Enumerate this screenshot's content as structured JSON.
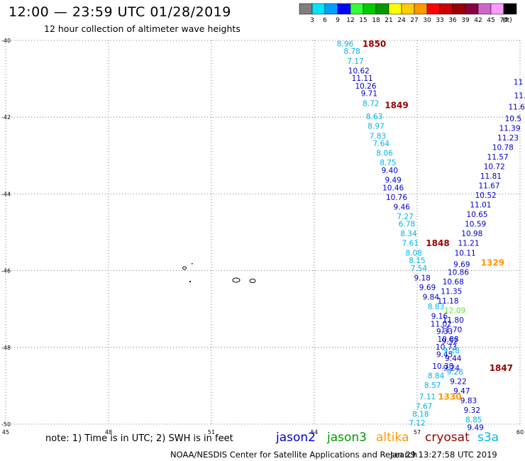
{
  "header": {
    "title": "12:00 — 23:59 UTC 01/28/2019",
    "subtitle": "12 hour collection of altimeter wave heights"
  },
  "colorbar": {
    "unit_label": "(ft)",
    "levels": [
      {
        "label": "3",
        "color": "#7f7f7f"
      },
      {
        "label": "6",
        "color": "#00e5ff"
      },
      {
        "label": "9",
        "color": "#00a0ff"
      },
      {
        "label": "12",
        "color": "#0000ff"
      },
      {
        "label": "15",
        "color": "#33ff33"
      },
      {
        "label": "18",
        "color": "#00cc00"
      },
      {
        "label": "21",
        "color": "#009900"
      },
      {
        "label": "24",
        "color": "#ffff00"
      },
      {
        "label": "27",
        "color": "#ffcc00"
      },
      {
        "label": "30",
        "color": "#ff9900"
      },
      {
        "label": "33",
        "color": "#ff0000"
      },
      {
        "label": "36",
        "color": "#cc0000"
      },
      {
        "label": "39",
        "color": "#990000"
      },
      {
        "label": "42",
        "color": "#880044"
      },
      {
        "label": "45",
        "color": "#cc66cc"
      },
      {
        "label": "70",
        "color": "#ff99ff"
      },
      {
        "label": "",
        "color": "#000000"
      }
    ]
  },
  "colors": {
    "jason2": "#0000c8",
    "jason3": "#009900",
    "altika": "#ff9900",
    "cryosat": "#990000",
    "s3a": "#00b4e6",
    "light_green": "#66dd33"
  },
  "legend": {
    "note": "note: 1) Time is in UTC; 2) SWH is in feet",
    "items": [
      {
        "label": "jason2",
        "color_key": "jason2"
      },
      {
        "label": "jason3",
        "color_key": "jason3"
      },
      {
        "label": "altika",
        "color_key": "altika"
      },
      {
        "label": "cryosat",
        "color_key": "cryosat"
      },
      {
        "label": "s3a",
        "color_key": "s3a"
      }
    ]
  },
  "footer": {
    "credit": "NOAA/NESDIS Center for Satellite Applications and Research",
    "timestamp": "Jan 29 13:27:58 UTC 2019"
  },
  "chart_data": {
    "type": "scatter",
    "x_unit": "degrees longitude",
    "y_unit": "degrees latitude",
    "xlim": [
      45,
      60
    ],
    "ylim": [
      -50,
      -40
    ],
    "x_ticks": [
      "45",
      "48",
      "51",
      "54",
      "57",
      "60"
    ],
    "y_ticks": [
      "-40",
      "-42",
      "-44",
      "-46",
      "-48",
      "-50"
    ],
    "grid": true,
    "tracks": [
      {
        "satellite": "s3a_jason2_track_1",
        "points": [
          {
            "lon": 54.9,
            "lat": -40.1,
            "v": "8.96",
            "c": "s3a"
          },
          {
            "lon": 55.1,
            "lat": -40.3,
            "v": "8.78",
            "c": "s3a"
          },
          {
            "lon": 55.2,
            "lat": -40.55,
            "v": "7.17",
            "c": "s3a"
          },
          {
            "lon": 55.3,
            "lat": -40.8,
            "v": "10.62",
            "c": "jason2"
          },
          {
            "lon": 55.4,
            "lat": -41.0,
            "v": "11.11",
            "c": "jason2"
          },
          {
            "lon": 55.5,
            "lat": -41.2,
            "v": "10.26",
            "c": "jason2"
          },
          {
            "lon": 55.6,
            "lat": -41.4,
            "v": "9.71",
            "c": "jason2"
          },
          {
            "lon": 55.65,
            "lat": -41.65,
            "v": "8.72",
            "c": "s3a"
          },
          {
            "lon": 55.75,
            "lat": -42.0,
            "v": "8.63",
            "c": "s3a"
          },
          {
            "lon": 55.8,
            "lat": -42.25,
            "v": "8.97",
            "c": "s3a"
          },
          {
            "lon": 55.85,
            "lat": -42.5,
            "v": "7.83",
            "c": "s3a"
          },
          {
            "lon": 55.95,
            "lat": -42.7,
            "v": "7.64",
            "c": "s3a"
          },
          {
            "lon": 56.05,
            "lat": -42.95,
            "v": "8.06",
            "c": "s3a"
          },
          {
            "lon": 56.15,
            "lat": -43.2,
            "v": "8.75",
            "c": "s3a"
          },
          {
            "lon": 56.2,
            "lat": -43.4,
            "v": "9.40",
            "c": "jason2"
          },
          {
            "lon": 56.3,
            "lat": -43.65,
            "v": "9.49",
            "c": "jason2"
          },
          {
            "lon": 56.3,
            "lat": -43.85,
            "v": "10.46",
            "c": "jason2"
          },
          {
            "lon": 56.4,
            "lat": -44.1,
            "v": "10.76",
            "c": "jason2"
          },
          {
            "lon": 56.55,
            "lat": -44.35,
            "v": "9.46",
            "c": "jason2"
          },
          {
            "lon": 56.65,
            "lat": -44.6,
            "v": "7.27",
            "c": "s3a"
          },
          {
            "lon": 56.7,
            "lat": -44.8,
            "v": "6.78",
            "c": "s3a"
          },
          {
            "lon": 56.75,
            "lat": -45.05,
            "v": "8.34",
            "c": "s3a"
          },
          {
            "lon": 56.8,
            "lat": -45.3,
            "v": "7.61",
            "c": "s3a"
          },
          {
            "lon": 56.9,
            "lat": -45.55,
            "v": "8.08",
            "c": "s3a"
          },
          {
            "lon": 57.0,
            "lat": -45.75,
            "v": "8.15",
            "c": "s3a"
          },
          {
            "lon": 57.05,
            "lat": -45.95,
            "v": "7.54",
            "c": "s3a"
          },
          {
            "lon": 57.15,
            "lat": -46.2,
            "v": "9.18",
            "c": "jason2"
          },
          {
            "lon": 57.3,
            "lat": -46.45,
            "v": "9.69",
            "c": "jason2"
          },
          {
            "lon": 57.4,
            "lat": -46.7,
            "v": "9.84",
            "c": "jason2"
          },
          {
            "lon": 57.55,
            "lat": -46.95,
            "v": "8.83",
            "c": "s3a"
          },
          {
            "lon": 57.65,
            "lat": -47.2,
            "v": "9.16",
            "c": "jason2"
          },
          {
            "lon": 57.7,
            "lat": -47.4,
            "v": "11.02",
            "c": "jason2"
          },
          {
            "lon": 57.8,
            "lat": -47.6,
            "v": "9.33",
            "c": "jason2"
          },
          {
            "lon": 57.9,
            "lat": -47.8,
            "v": "10.88",
            "c": "jason2"
          },
          {
            "lon": 57.85,
            "lat": -48.0,
            "v": "10.73",
            "c": "jason2"
          },
          {
            "lon": 57.8,
            "lat": -48.2,
            "v": "9.45",
            "c": "jason2"
          },
          {
            "lon": 57.75,
            "lat": -48.5,
            "v": "10.38",
            "c": "jason2"
          },
          {
            "lon": 57.55,
            "lat": -48.75,
            "v": "8.84",
            "c": "s3a"
          },
          {
            "lon": 57.45,
            "lat": -49.0,
            "v": "8.57",
            "c": "s3a"
          },
          {
            "lon": 57.3,
            "lat": -49.3,
            "v": "7.11",
            "c": "s3a"
          },
          {
            "lon": 57.2,
            "lat": -49.55,
            "v": "7.67",
            "c": "s3a"
          },
          {
            "lon": 57.1,
            "lat": -49.75,
            "v": "8.18",
            "c": "s3a"
          },
          {
            "lon": 57.0,
            "lat": -49.98,
            "v": "7.12",
            "c": "s3a"
          }
        ]
      },
      {
        "satellite": "jason2_track_2",
        "points": [
          {
            "lon": 59.95,
            "lat": -41.1,
            "v": "11",
            "c": "jason2"
          },
          {
            "lon": 60.0,
            "lat": -41.45,
            "v": "11.",
            "c": "jason2"
          },
          {
            "lon": 59.9,
            "lat": -41.75,
            "v": "11.6",
            "c": "jason2"
          },
          {
            "lon": 59.8,
            "lat": -42.05,
            "v": "10.5",
            "c": "jason2"
          },
          {
            "lon": 59.7,
            "lat": -42.3,
            "v": "11.39",
            "c": "jason2"
          },
          {
            "lon": 59.65,
            "lat": -42.55,
            "v": "11.23",
            "c": "jason2"
          },
          {
            "lon": 59.5,
            "lat": -42.8,
            "v": "10.78",
            "c": "jason2"
          },
          {
            "lon": 59.35,
            "lat": -43.05,
            "v": "11.57",
            "c": "jason2"
          },
          {
            "lon": 59.25,
            "lat": -43.3,
            "v": "10.72",
            "c": "jason2"
          },
          {
            "lon": 59.15,
            "lat": -43.55,
            "v": "11.81",
            "c": "jason2"
          },
          {
            "lon": 59.1,
            "lat": -43.8,
            "v": "11.67",
            "c": "jason2"
          },
          {
            "lon": 59.0,
            "lat": -44.05,
            "v": "10.52",
            "c": "jason2"
          },
          {
            "lon": 58.85,
            "lat": -44.3,
            "v": "11.01",
            "c": "jason2"
          },
          {
            "lon": 58.75,
            "lat": -44.55,
            "v": "10.65",
            "c": "jason2"
          },
          {
            "lon": 58.7,
            "lat": -44.8,
            "v": "10.59",
            "c": "jason2"
          },
          {
            "lon": 58.6,
            "lat": -45.05,
            "v": "10.98",
            "c": "jason2"
          },
          {
            "lon": 58.5,
            "lat": -45.3,
            "v": "11.21",
            "c": "jason2"
          },
          {
            "lon": 58.4,
            "lat": -45.55,
            "v": "10.11",
            "c": "jason2"
          },
          {
            "lon": 58.3,
            "lat": -45.85,
            "v": "9.69",
            "c": "jason2"
          },
          {
            "lon": 58.2,
            "lat": -46.05,
            "v": "10.86",
            "c": "jason2"
          },
          {
            "lon": 58.05,
            "lat": -46.3,
            "v": "10.68",
            "c": "jason2"
          },
          {
            "lon": 58.0,
            "lat": -46.55,
            "v": "11.35",
            "c": "jason2"
          },
          {
            "lon": 57.9,
            "lat": -46.8,
            "v": "11.18",
            "c": "jason2"
          },
          {
            "lon": 58.1,
            "lat": -47.05,
            "v": "12.09",
            "c": "light_green"
          },
          {
            "lon": 58.05,
            "lat": -47.3,
            "v": "11.80",
            "c": "jason2"
          },
          {
            "lon": 58.0,
            "lat": -47.55,
            "v": "11.70",
            "c": "jason2"
          },
          {
            "lon": 57.95,
            "lat": -47.85,
            "v": "9.52",
            "c": "jason2"
          },
          {
            "lon": 58.0,
            "lat": -48.1,
            "v": "9.28",
            "c": "s3a"
          },
          {
            "lon": 58.05,
            "lat": -48.3,
            "v": "9.44",
            "c": "jason2"
          },
          {
            "lon": 58.0,
            "lat": -48.55,
            "v": "9.24",
            "c": "jason2"
          },
          {
            "lon": 58.1,
            "lat": -48.65,
            "v": "9.28",
            "c": "s3a"
          },
          {
            "lon": 58.2,
            "lat": -48.9,
            "v": "9.22",
            "c": "jason2"
          },
          {
            "lon": 58.3,
            "lat": -49.15,
            "v": "9.47",
            "c": "jason2"
          },
          {
            "lon": 58.5,
            "lat": -49.4,
            "v": "9.83",
            "c": "jason2"
          },
          {
            "lon": 58.6,
            "lat": -49.65,
            "v": "9.32",
            "c": "jason2"
          },
          {
            "lon": 58.65,
            "lat": -49.9,
            "v": "8.85",
            "c": "s3a"
          },
          {
            "lon": 58.7,
            "lat": -50.1,
            "v": "9.49",
            "c": "jason2"
          }
        ]
      }
    ],
    "time_labels": [
      {
        "lon": 55.75,
        "lat": -40.1,
        "text": "1850",
        "c": "cryosat"
      },
      {
        "lon": 56.4,
        "lat": -41.7,
        "text": "1849",
        "c": "cryosat"
      },
      {
        "lon": 57.6,
        "lat": -45.3,
        "text": "1848",
        "c": "cryosat"
      },
      {
        "lon": 59.45,
        "lat": -48.55,
        "text": "1847",
        "c": "cryosat"
      },
      {
        "lon": 59.2,
        "lat": -45.8,
        "text": "1329",
        "c": "altika"
      },
      {
        "lon": 57.95,
        "lat": -49.3,
        "text": "1330",
        "c": "altika"
      }
    ]
  }
}
